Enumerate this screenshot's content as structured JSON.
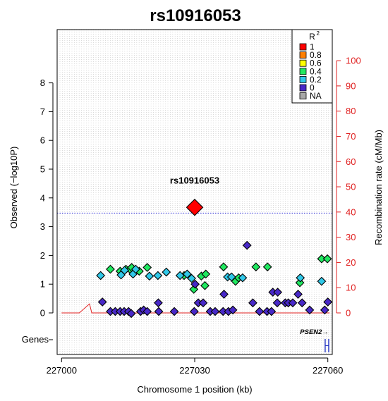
{
  "chart_data": {
    "type": "scatter",
    "title": "rs10916053",
    "xlabel": "Chromosome 1 position (kb)",
    "ylabel": "Observed (−log10P)",
    "y2label": "Recombination rate (cM/Mb)",
    "genes_label": "Genes",
    "xlim": [
      226999,
      227061
    ],
    "ylim": [
      0,
      10
    ],
    "y2lim": [
      0,
      115
    ],
    "x_ticks": [
      227000,
      227030,
      227060
    ],
    "y_ticks": [
      0,
      1,
      2,
      3,
      4,
      5,
      6,
      7,
      8
    ],
    "y2_ticks": [
      0,
      10,
      20,
      30,
      40,
      50,
      60,
      70,
      80,
      90,
      100
    ],
    "x_grid": true,
    "significance_line_y": 3.47,
    "index_snp": {
      "label": "rs10916053",
      "x": 227030,
      "y": 3.67,
      "color": "#FF0000"
    },
    "legend": {
      "title": "R",
      "title_sup": "2",
      "position": "top-right",
      "items": [
        {
          "label": "1",
          "color": "#FF0000"
        },
        {
          "label": "0.8",
          "color": "#FF8000"
        },
        {
          "label": "0.6",
          "color": "#FFFF00"
        },
        {
          "label": "0.4",
          "color": "#20E860"
        },
        {
          "label": "0.2",
          "color": "#30C8E8"
        },
        {
          "label": "0",
          "color": "#4828C8"
        },
        {
          "label": "NA",
          "color": "#A8A8A8"
        }
      ]
    },
    "gene": {
      "label": "PSEN2→",
      "x_start": 227059.4,
      "x_end": 227060.2,
      "color": "#2030C0"
    },
    "recombination": [
      [
        227000,
        0
      ],
      [
        227004,
        0
      ],
      [
        227006.3,
        3.6
      ],
      [
        227006.8,
        0
      ],
      [
        227008.3,
        0
      ],
      [
        227060.4,
        0
      ]
    ],
    "series": [
      {
        "name": "0.4",
        "color": "#20E860",
        "points": [
          [
            227011,
            1.52
          ],
          [
            227013.2,
            1.45
          ],
          [
            227014.5,
            1.52
          ],
          [
            227015.4,
            1.52
          ],
          [
            227015.8,
            1.58
          ],
          [
            227017.5,
            1.45
          ],
          [
            227019.3,
            1.58
          ],
          [
            227027.6,
            1.3
          ],
          [
            227029.8,
            0.82
          ],
          [
            227031.5,
            1.28
          ],
          [
            227032.3,
            0.95
          ],
          [
            227032.5,
            1.35
          ],
          [
            227036.5,
            1.6
          ],
          [
            227039.2,
            1.1
          ],
          [
            227039.9,
            1.22
          ],
          [
            227043.8,
            1.6
          ],
          [
            227046.4,
            1.6
          ],
          [
            227053.7,
            1.05
          ],
          [
            227058.6,
            1.88
          ],
          [
            227059.9,
            1.88
          ]
        ]
      },
      {
        "name": "0.2",
        "color": "#30C8E8",
        "points": [
          [
            227008.8,
            1.3
          ],
          [
            227013.4,
            1.32
          ],
          [
            227014.2,
            1.48
          ],
          [
            227016.1,
            1.35
          ],
          [
            227016.7,
            1.52
          ],
          [
            227019.8,
            1.28
          ],
          [
            227021.7,
            1.3
          ],
          [
            227023.6,
            1.42
          ],
          [
            227026.7,
            1.3
          ],
          [
            227028.3,
            1.35
          ],
          [
            227029.3,
            1.2
          ],
          [
            227037.4,
            1.25
          ],
          [
            227038.3,
            1.25
          ],
          [
            227040.8,
            1.22
          ],
          [
            227053.8,
            1.22
          ],
          [
            227058.6,
            1.1
          ]
        ]
      },
      {
        "name": "0",
        "color": "#4828C8",
        "points": [
          [
            227009.2,
            0.38
          ],
          [
            227011,
            0.05
          ],
          [
            227012.1,
            0.05
          ],
          [
            227013.2,
            0.05
          ],
          [
            227014.1,
            0.05
          ],
          [
            227015.1,
            0.05
          ],
          [
            227015.7,
            -0.02
          ],
          [
            227017.8,
            0.05
          ],
          [
            227018.5,
            0.1
          ],
          [
            227019.3,
            0.05
          ],
          [
            227021.8,
            0.35
          ],
          [
            227021.9,
            0.05
          ],
          [
            227025.4,
            0.05
          ],
          [
            227029.9,
            0.05
          ],
          [
            227030.1,
            1.0
          ],
          [
            227030.8,
            0.35
          ],
          [
            227031.9,
            0.35
          ],
          [
            227033.5,
            0.05
          ],
          [
            227034.6,
            0.05
          ],
          [
            227036.4,
            0.05
          ],
          [
            227036.6,
            0.65
          ],
          [
            227037.6,
            0.05
          ],
          [
            227038.6,
            0.1
          ],
          [
            227041.8,
            2.35
          ],
          [
            227043.1,
            0.35
          ],
          [
            227044.6,
            0.05
          ],
          [
            227046.3,
            0.05
          ],
          [
            227047.3,
            0.05
          ],
          [
            227047.6,
            0.72
          ],
          [
            227048.6,
            0.35
          ],
          [
            227048.7,
            0.72
          ],
          [
            227050.4,
            0.35
          ],
          [
            227051.1,
            0.35
          ],
          [
            227052.1,
            0.35
          ],
          [
            227053.3,
            0.65
          ],
          [
            227054.2,
            0.35
          ],
          [
            227055.9,
            0.1
          ],
          [
            227059.3,
            0.1
          ],
          [
            227060,
            0.38
          ]
        ]
      }
    ]
  }
}
